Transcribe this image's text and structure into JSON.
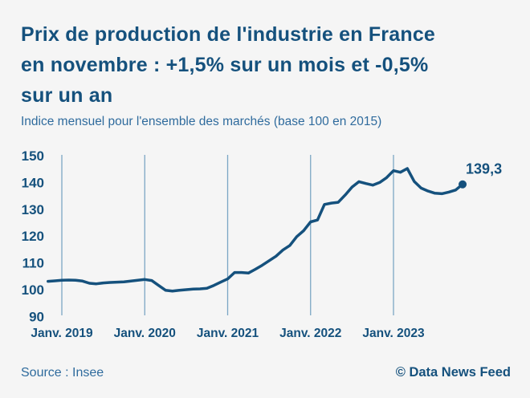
{
  "page": {
    "title": "Prix de production de l'industrie en France en novembre : +1,5% sur un mois et -0,5% sur un an",
    "title_lines": [
      "Prix de production de l'industrie en France",
      "en novembre : +1,5% sur un mois et -0,5%",
      "sur un an"
    ],
    "subtitle": "Indice mensuel pour l'ensemble des marchés (base 100 en 2015)",
    "source": "Source : Insee",
    "credit": "© Data News Feed"
  },
  "colors": {
    "background": "#f5f5f5",
    "primary": "#15517d",
    "secondary": "#2f6b9d",
    "gridline": "#7ba6c4"
  },
  "chart_data": {
    "type": "line",
    "title": "Prix de production de l'industrie en France en novembre : +1,5% sur un mois et -0,5% sur un an",
    "subtitle": "Indice mensuel pour l'ensemble des marchés (base 100 en 2015)",
    "unit": "Indice (base 100 en 2015)",
    "frequency": "monthly",
    "ylim": [
      90,
      150
    ],
    "y_ticks": [
      90,
      100,
      110,
      120,
      130,
      140,
      150
    ],
    "x_tick_labels": [
      "Janv. 2019",
      "Janv. 2020",
      "Janv. 2021",
      "Janv. 2022",
      "Janv. 2023"
    ],
    "grid": "vertical-year-lines-only",
    "legend": "none",
    "end_label": "139,3",
    "last_point": {
      "x": "2023-11",
      "value": 139.3
    },
    "x": [
      "2018-11",
      "2018-12",
      "2019-01",
      "2019-02",
      "2019-03",
      "2019-04",
      "2019-05",
      "2019-06",
      "2019-07",
      "2019-08",
      "2019-09",
      "2019-10",
      "2019-11",
      "2019-12",
      "2020-01",
      "2020-02",
      "2020-03",
      "2020-04",
      "2020-05",
      "2020-06",
      "2020-07",
      "2020-08",
      "2020-09",
      "2020-10",
      "2020-11",
      "2020-12",
      "2021-01",
      "2021-02",
      "2021-03",
      "2021-04",
      "2021-05",
      "2021-06",
      "2021-07",
      "2021-08",
      "2021-09",
      "2021-10",
      "2021-11",
      "2021-12",
      "2022-01",
      "2022-02",
      "2022-03",
      "2022-04",
      "2022-05",
      "2022-06",
      "2022-07",
      "2022-08",
      "2022-09",
      "2022-10",
      "2022-11",
      "2022-12",
      "2023-01",
      "2023-02",
      "2023-03",
      "2023-04",
      "2023-05",
      "2023-06",
      "2023-07",
      "2023-08",
      "2023-09",
      "2023-10",
      "2023-11"
    ],
    "values": [
      103.1,
      103.3,
      103.5,
      103.6,
      103.5,
      103.2,
      102.4,
      102.2,
      102.5,
      102.7,
      102.8,
      102.9,
      103.2,
      103.5,
      103.8,
      103.4,
      101.6,
      99.8,
      99.5,
      99.8,
      100.0,
      100.2,
      100.3,
      100.5,
      101.6,
      102.8,
      104.0,
      106.4,
      106.4,
      106.2,
      107.6,
      109.1,
      110.8,
      112.5,
      114.8,
      116.5,
      119.8,
      122.0,
      125.3,
      126.0,
      131.8,
      132.3,
      132.6,
      135.3,
      138.3,
      140.3,
      139.6,
      139.0,
      140.0,
      141.8,
      144.4,
      143.8,
      145.2,
      140.4,
      137.9,
      136.8,
      136.0,
      135.8,
      136.4,
      137.2,
      139.3
    ]
  }
}
